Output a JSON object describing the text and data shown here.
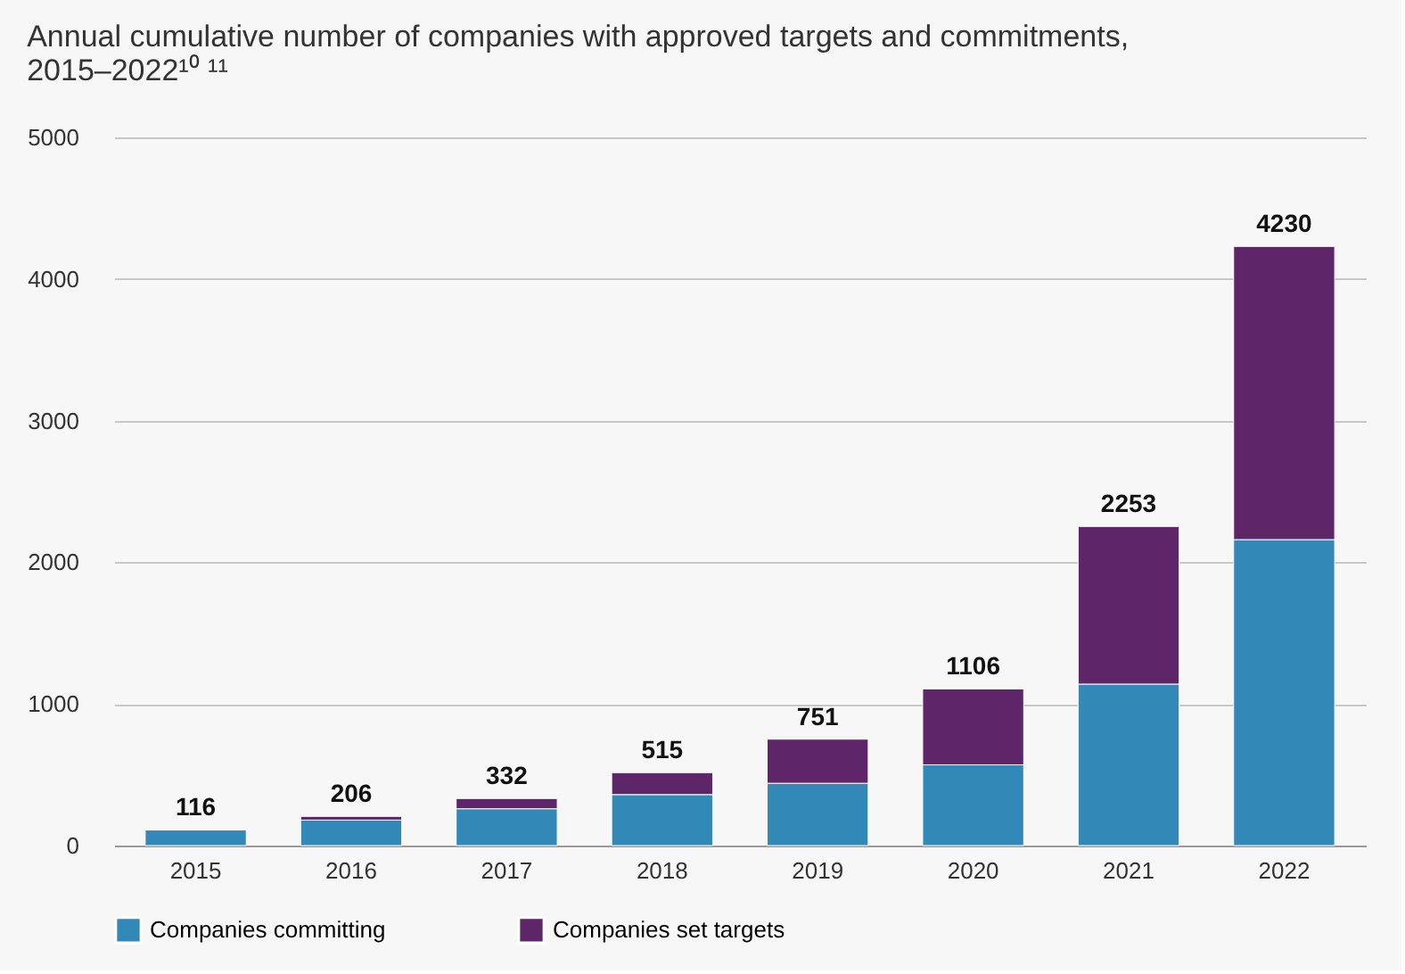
{
  "chart_data": {
    "type": "bar",
    "title": "Annual cumulative number of companies with approved targets and commitments, 2015–2022¹⁰ ¹¹",
    "categories": [
      "2015",
      "2016",
      "2017",
      "2018",
      "2019",
      "2020",
      "2021",
      "2022"
    ],
    "stacked": true,
    "series": [
      {
        "name": "Companies committing",
        "color": "#3289b8",
        "values": [
          110,
          180,
          260,
          360,
          440,
          570,
          1140,
          2160
        ]
      },
      {
        "name": "Companies set targets",
        "color": "#5e2569",
        "values": [
          6,
          26,
          72,
          155,
          311,
          536,
          1113,
          2070
        ]
      }
    ],
    "totals": [
      "116",
      "206",
      "332",
      "515",
      "751",
      "1106",
      "2253",
      "4230"
    ],
    "ylim": [
      0,
      5000
    ],
    "yticks": [
      0,
      1000,
      2000,
      3000,
      4000,
      5000
    ],
    "grid": "y",
    "legend": "bottom"
  }
}
